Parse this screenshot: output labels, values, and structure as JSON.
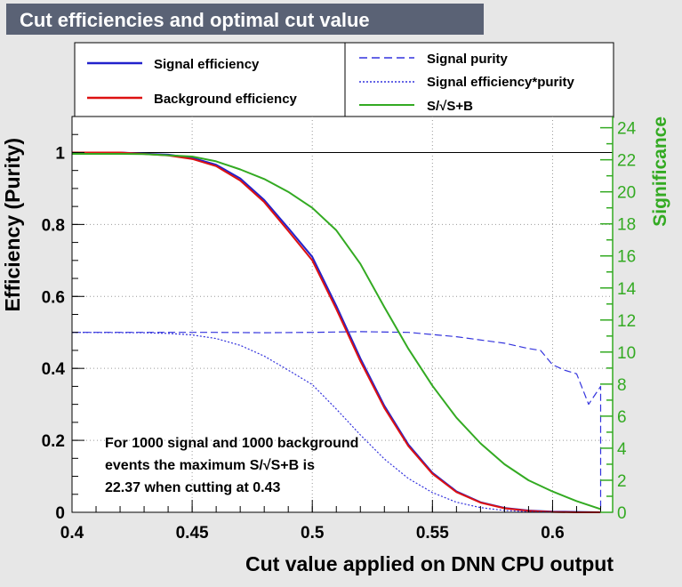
{
  "chart_data": {
    "type": "line",
    "title": "Cut efficiencies and optimal cut value",
    "xlabel": "Cut value applied on DNN CPU output",
    "ylabel": "Efficiency (Purity)",
    "y2label": "Significance",
    "xlim": [
      0.4,
      0.625
    ],
    "ylim": [
      0,
      1.1
    ],
    "y2lim": [
      0,
      24.7
    ],
    "xticks": [
      "0.4",
      "0.45",
      "0.5",
      "0.55",
      "0.6"
    ],
    "xtick_values": [
      0.4,
      0.45,
      0.5,
      0.55,
      0.6
    ],
    "yticks": [
      "0",
      "0.2",
      "0.4",
      "0.6",
      "0.8",
      "1"
    ],
    "ytick_values": [
      0,
      0.2,
      0.4,
      0.6,
      0.8,
      1
    ],
    "y2ticks": [
      "0",
      "2",
      "4",
      "6",
      "8",
      "10",
      "12",
      "14",
      "16",
      "18",
      "20",
      "22",
      "24"
    ],
    "y2tick_values": [
      0,
      2,
      4,
      6,
      8,
      10,
      12,
      14,
      16,
      18,
      20,
      22,
      24
    ],
    "reference_line_y": 1,
    "grid": true,
    "legend": {
      "left": [
        "Signal efficiency",
        "Background efficiency"
      ],
      "right": [
        "Signal purity",
        "Signal efficiency*purity",
        "S/√S+B"
      ]
    },
    "series": [
      {
        "name": "Signal efficiency",
        "axis": "left",
        "color": "#2222cc",
        "style": "solid",
        "x": [
          0.4,
          0.42,
          0.43,
          0.44,
          0.45,
          0.46,
          0.47,
          0.48,
          0.49,
          0.5,
          0.51,
          0.52,
          0.53,
          0.54,
          0.55,
          0.56,
          0.57,
          0.58,
          0.59,
          0.6,
          0.61,
          0.62
        ],
        "y": [
          1.0,
          1.0,
          0.997,
          0.994,
          0.985,
          0.966,
          0.928,
          0.868,
          0.79,
          0.71,
          0.574,
          0.428,
          0.296,
          0.188,
          0.11,
          0.058,
          0.028,
          0.012,
          0.005,
          0.002,
          0.001,
          0.0
        ]
      },
      {
        "name": "Background efficiency",
        "axis": "left",
        "color": "#dd1111",
        "style": "solid",
        "x": [
          0.4,
          0.42,
          0.43,
          0.44,
          0.45,
          0.46,
          0.47,
          0.48,
          0.49,
          0.5,
          0.51,
          0.52,
          0.53,
          0.54,
          0.55,
          0.56,
          0.57,
          0.58,
          0.59,
          0.6,
          0.61,
          0.62
        ],
        "y": [
          1.0,
          1.0,
          0.996,
          0.992,
          0.982,
          0.962,
          0.922,
          0.862,
          0.782,
          0.7,
          0.565,
          0.42,
          0.29,
          0.184,
          0.107,
          0.056,
          0.027,
          0.011,
          0.004,
          0.001,
          0.0,
          0.0
        ]
      },
      {
        "name": "Signal purity",
        "axis": "left",
        "color": "#3333dd",
        "style": "dashed",
        "x": [
          0.4,
          0.43,
          0.46,
          0.48,
          0.5,
          0.52,
          0.54,
          0.56,
          0.58,
          0.59,
          0.595,
          0.6,
          0.605,
          0.61,
          0.615,
          0.62,
          0.62
        ],
        "y": [
          0.5,
          0.5,
          0.5,
          0.499,
          0.5,
          0.502,
          0.5,
          0.488,
          0.47,
          0.455,
          0.45,
          0.41,
          0.395,
          0.385,
          0.3,
          0.35,
          0.0
        ]
      },
      {
        "name": "Signal efficiency*purity",
        "axis": "left",
        "color": "#3333dd",
        "style": "dotted",
        "x": [
          0.4,
          0.43,
          0.44,
          0.45,
          0.46,
          0.47,
          0.48,
          0.49,
          0.5,
          0.51,
          0.52,
          0.53,
          0.54,
          0.55,
          0.56,
          0.57,
          0.58,
          0.59,
          0.6
        ],
        "y": [
          0.5,
          0.499,
          0.497,
          0.493,
          0.483,
          0.464,
          0.434,
          0.395,
          0.355,
          0.287,
          0.215,
          0.148,
          0.094,
          0.055,
          0.028,
          0.013,
          0.005,
          0.002,
          0.0
        ]
      },
      {
        "name": "S/√S+B",
        "axis": "right",
        "color": "#33aa22",
        "style": "solid",
        "x": [
          0.4,
          0.42,
          0.43,
          0.45,
          0.46,
          0.47,
          0.48,
          0.49,
          0.5,
          0.51,
          0.52,
          0.53,
          0.54,
          0.55,
          0.56,
          0.57,
          0.58,
          0.59,
          0.6,
          0.61,
          0.62
        ],
        "y": [
          22.37,
          22.37,
          22.35,
          22.2,
          21.9,
          21.4,
          20.8,
          20.0,
          19.0,
          17.6,
          15.5,
          12.8,
          10.2,
          7.9,
          5.9,
          4.3,
          3.0,
          2.0,
          1.3,
          0.7,
          0.2
        ]
      }
    ],
    "annotation": [
      "For 1000 signal and 1000 background",
      "events the maximum S/√S+B is",
      "22.37 when cutting at  0.43"
    ]
  }
}
